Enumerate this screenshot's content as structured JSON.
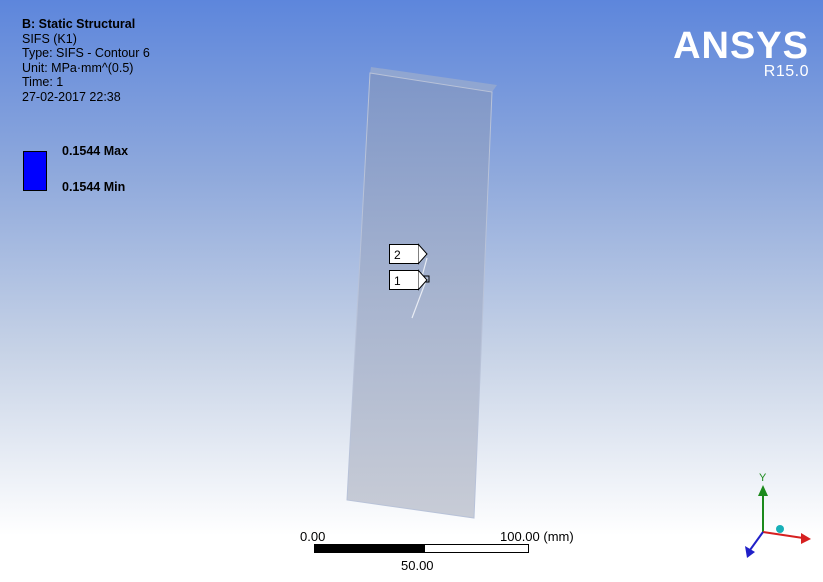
{
  "header": {
    "title": "B: Static Structural",
    "result_name": "SIFS (K1)",
    "type": "Type: SIFS - Contour 6",
    "unit": "Unit: MPa·mm^(0.5)",
    "time": "Time: 1",
    "date": "27-02-2017 22:38"
  },
  "legend": {
    "max_label": "0.1544 Max",
    "min_label": "0.1544 Min",
    "color": "#0000ff"
  },
  "logo": {
    "name": "ANSYS",
    "version": "R15.0"
  },
  "callouts": [
    "2",
    "1"
  ],
  "scale_bar": {
    "start": "0.00",
    "mid": "50.00",
    "end": "100.00 (mm)"
  },
  "triad": {
    "y_axis": "Y"
  },
  "colors": {
    "background_top": "#5d86dc",
    "background_bottom": "#ffffff",
    "model_fill": "#a9b6d0",
    "triad_y": "#1c8a1c",
    "triad_x": "#d62020",
    "triad_z": "#2020c8"
  }
}
